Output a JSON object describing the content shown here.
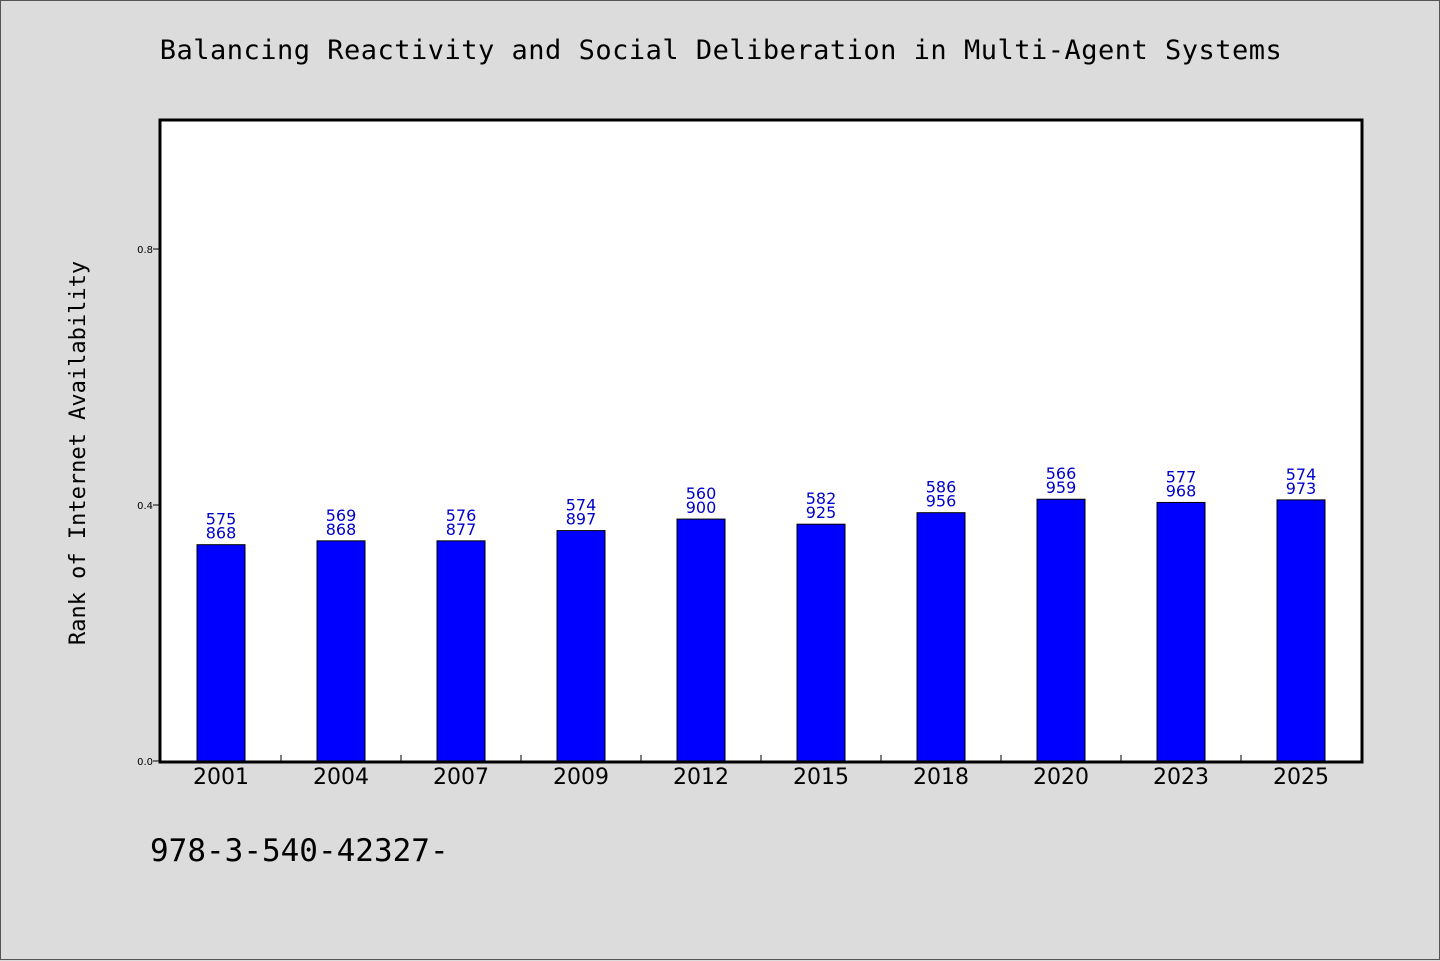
{
  "chart_data": {
    "type": "bar",
    "title": "Balancing Reactivity and Social Deliberation in Multi-Agent Systems",
    "xlabel": "",
    "ylabel": "Rank of Internet Availability",
    "categories": [
      "2001",
      "2004",
      "2007",
      "2009",
      "2012",
      "2015",
      "2018",
      "2020",
      "2023",
      "2025"
    ],
    "values": [
      0.338,
      0.344,
      0.344,
      0.36,
      0.378,
      0.37,
      0.388,
      0.409,
      0.404,
      0.408
    ],
    "data_labels": [
      [
        "575",
        "868"
      ],
      [
        "569",
        "868"
      ],
      [
        "576",
        "877"
      ],
      [
        "574",
        "897"
      ],
      [
        "560",
        "900"
      ],
      [
        "582",
        "925"
      ],
      [
        "586",
        "956"
      ],
      [
        "566",
        "959"
      ],
      [
        "577",
        "968"
      ],
      [
        "574",
        "973"
      ]
    ],
    "yticks": [
      "0.0",
      "0.4",
      "0.8"
    ],
    "ytick_values": [
      0.0,
      0.4,
      0.8
    ],
    "ylim": [
      0,
      1.0
    ],
    "grid": false,
    "bar_color": "#0000ff",
    "label_color": "#0000cc"
  },
  "footnote": "978-3-540-42327-"
}
